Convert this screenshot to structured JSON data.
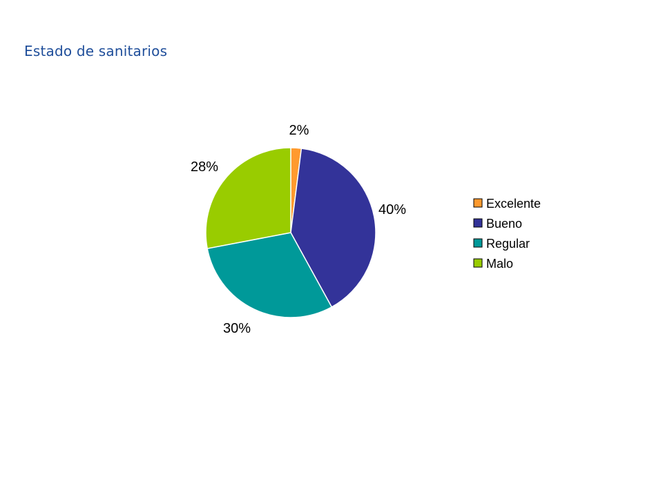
{
  "page": {
    "title": "Estado de sanitarios"
  },
  "chart_data": {
    "type": "pie",
    "title": "",
    "categories": [
      "Excelente",
      "Bueno",
      "Regular",
      "Malo"
    ],
    "values": [
      2,
      40,
      30,
      28
    ],
    "labels": [
      "2%",
      "40%",
      "30%",
      "28%"
    ],
    "colors": [
      "#ff9a2e",
      "#333399",
      "#009999",
      "#99cc00"
    ],
    "legend_position": "right"
  }
}
